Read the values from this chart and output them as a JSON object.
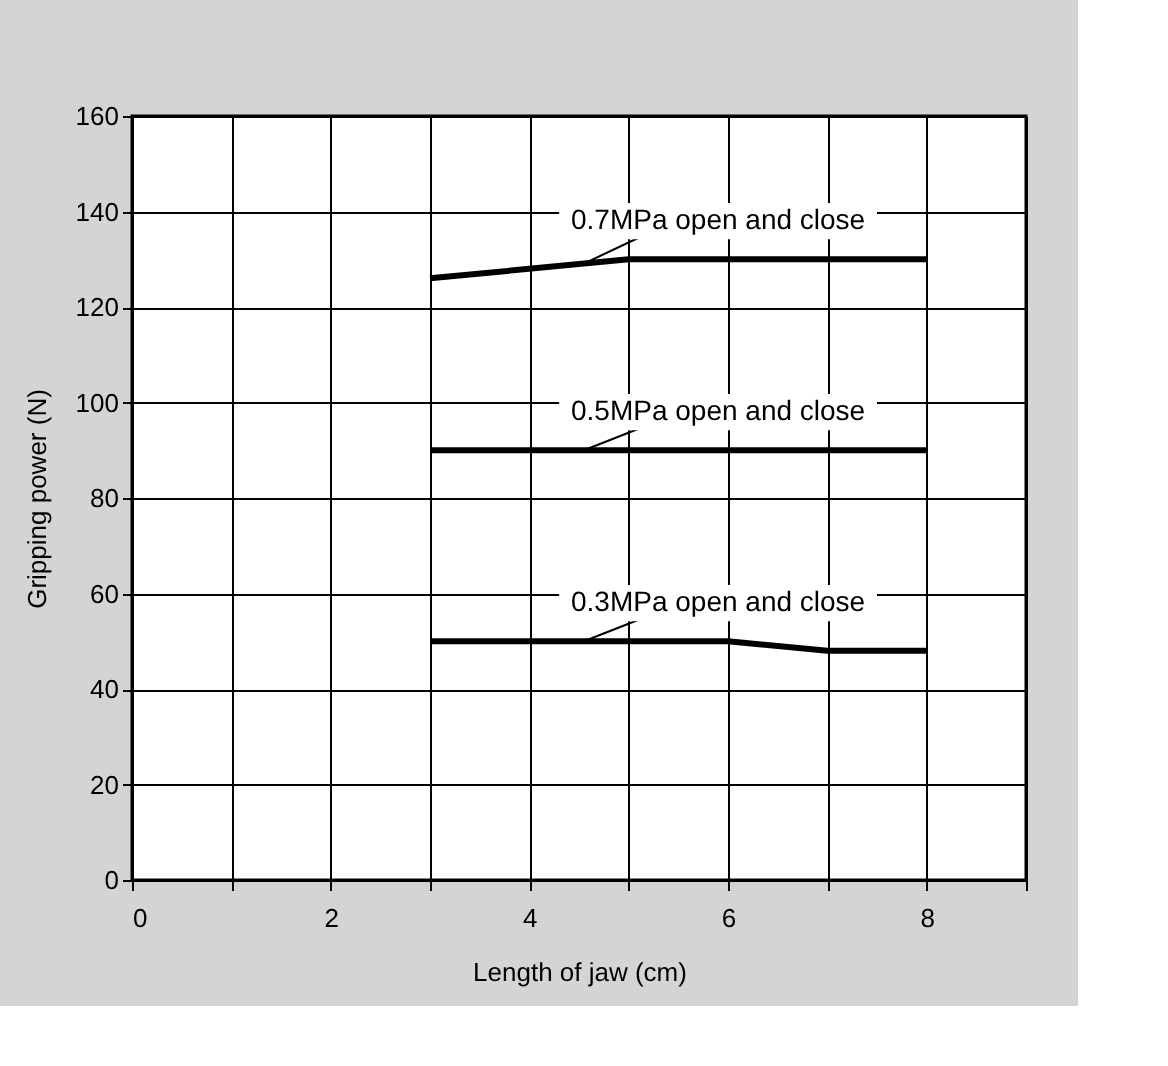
{
  "chart_data": {
    "type": "line",
    "xlabel": "Length of jaw (cm)",
    "ylabel": "Gripping power (N)",
    "xlim": [
      0,
      9
    ],
    "xticks": [
      0,
      {
        "value": 1,
        "label": null
      },
      2,
      {
        "value": 3,
        "label": null
      },
      4,
      {
        "value": 5,
        "label": null
      },
      6,
      {
        "value": 7,
        "label": null
      },
      8,
      {
        "value": 9,
        "label": null
      }
    ],
    "ylim": [
      0,
      160
    ],
    "yticks": [
      0,
      20,
      40,
      60,
      80,
      100,
      120,
      140,
      160
    ],
    "grid": true,
    "legend": false,
    "marker": "none",
    "line_style": "solid",
    "series": [
      {
        "name": "0.7MPa open and close",
        "color": "#000000",
        "x": [
          3,
          5,
          8
        ],
        "values": [
          126,
          130,
          130
        ]
      },
      {
        "name": "0.5MPa open and close",
        "color": "#000000",
        "x": [
          3,
          8
        ],
        "values": [
          90,
          90
        ]
      },
      {
        "name": "0.3MPa open and close",
        "color": "#000000",
        "x": [
          3,
          6,
          7,
          8
        ],
        "values": [
          50,
          50,
          48,
          48
        ]
      }
    ]
  }
}
